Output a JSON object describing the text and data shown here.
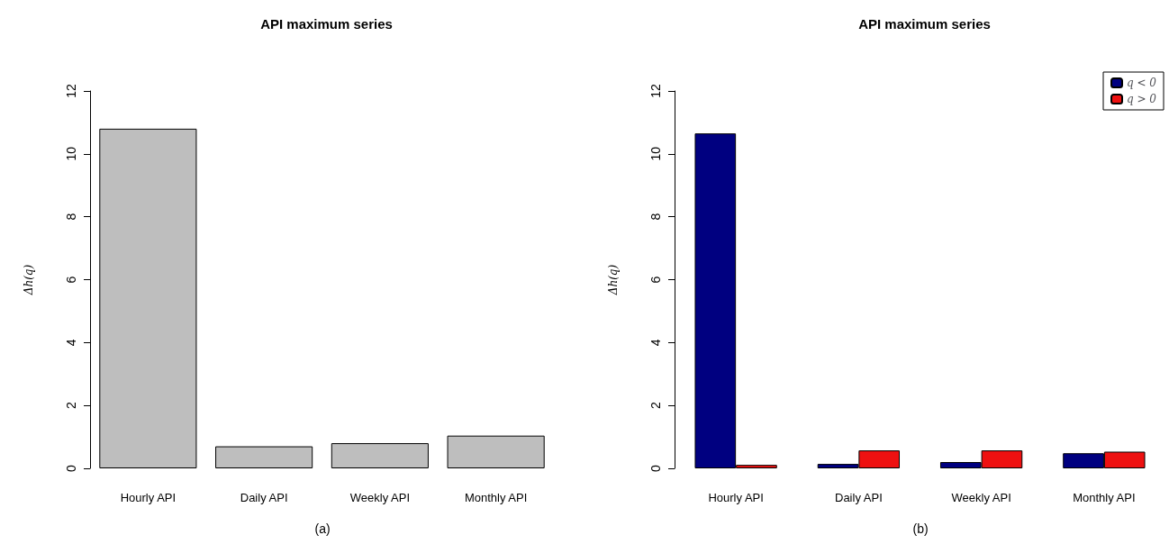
{
  "chart_data": [
    {
      "type": "bar",
      "title": "API maximum series",
      "ylabel": "Δh(q)",
      "categories": [
        "Hourly API",
        "Daily API",
        "Weekly API",
        "Monthly API"
      ],
      "series": [
        {
          "color": "#bebebe",
          "values": [
            10.8,
            0.7,
            0.8,
            1.04
          ]
        }
      ],
      "ylim": [
        0,
        12
      ],
      "yticks": [
        0,
        2,
        4,
        6,
        8,
        10,
        12
      ],
      "grid": false,
      "annotations": [
        "(a)"
      ]
    },
    {
      "type": "bar",
      "title": "API maximum series",
      "ylabel": "Δh(q)",
      "categories": [
        "Hourly API",
        "Daily API",
        "Weekly API",
        "Monthly API"
      ],
      "series": [
        {
          "name": "q < 0",
          "color": "#000080",
          "values": [
            10.65,
            0.14,
            0.2,
            0.48
          ]
        },
        {
          "name": "q > 0",
          "color": "#ee1111",
          "values": [
            0.11,
            0.57,
            0.57,
            0.53
          ]
        }
      ],
      "ylim": [
        0,
        12
      ],
      "yticks": [
        0,
        2,
        4,
        6,
        8,
        10,
        12
      ],
      "grid": false,
      "legend": "top right",
      "annotations": [
        "(b)"
      ]
    }
  ]
}
